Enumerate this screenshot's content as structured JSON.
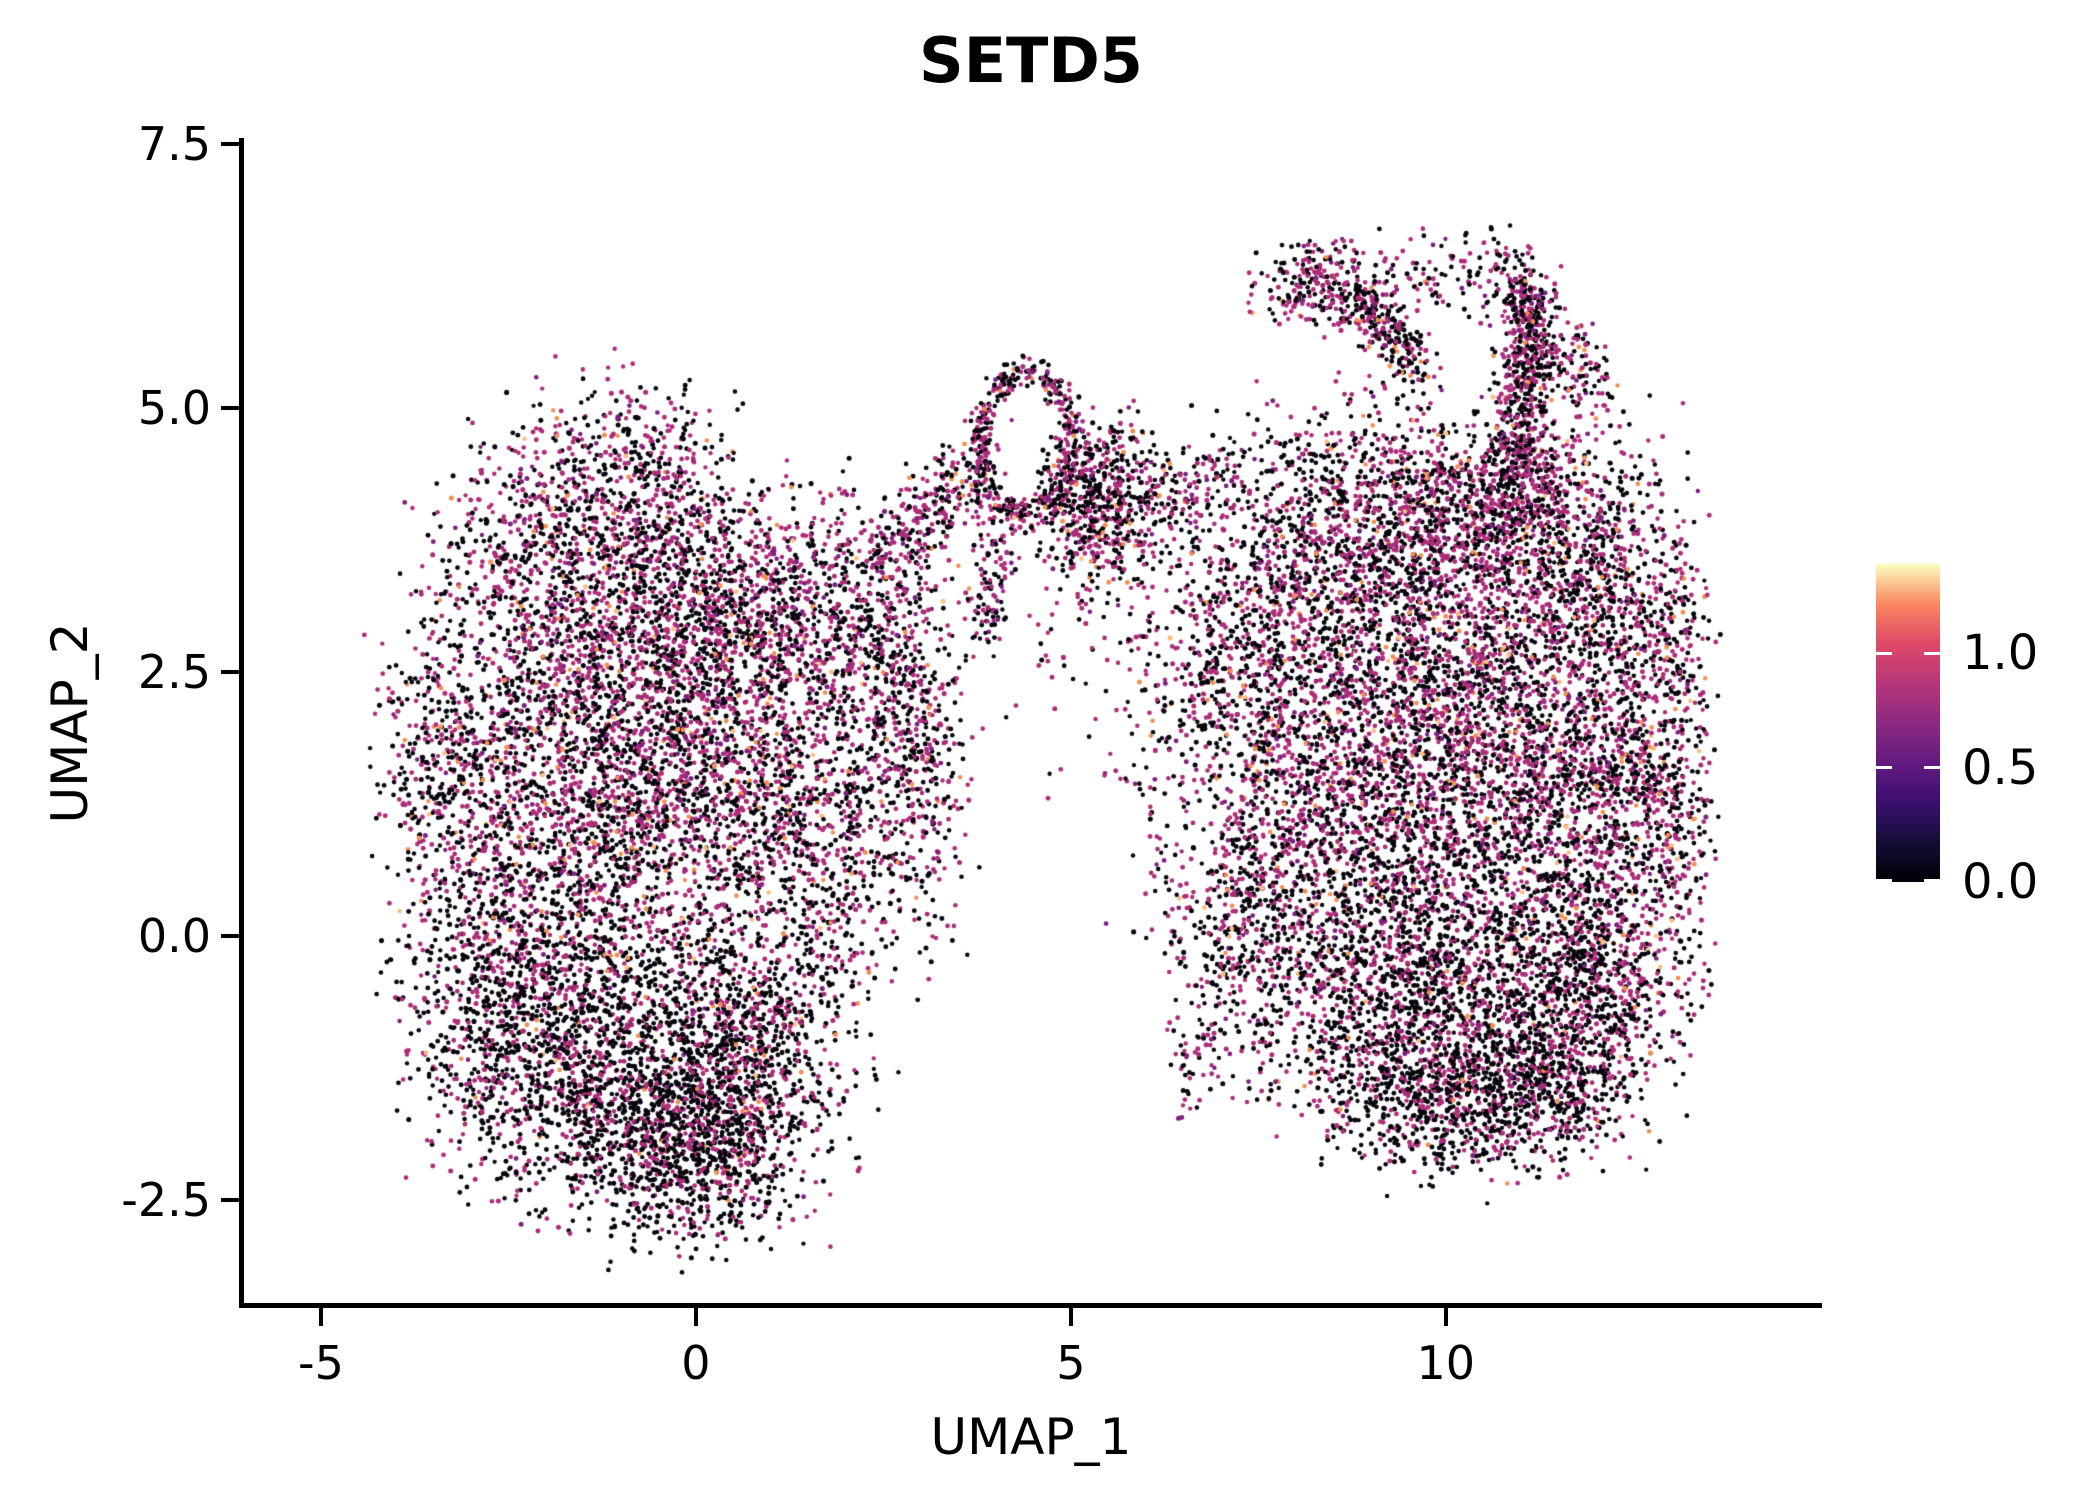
{
  "chart_data": {
    "type": "scatter",
    "title": "SETD5",
    "xlabel": "UMAP_1",
    "ylabel": "UMAP_2",
    "xlim": [
      -6.04,
      14.99
    ],
    "ylim": [
      -3.504,
      7.538
    ],
    "grid": false,
    "legend_position": "right-colorbar",
    "point_color_encoding": "SETD5 expression per cell, magma colormap, 0 to ~1.4",
    "x_ticks": [
      {
        "value": -5,
        "label": "-5"
      },
      {
        "value": 0,
        "label": "0"
      },
      {
        "value": 5,
        "label": "5"
      },
      {
        "value": 10,
        "label": "10"
      }
    ],
    "y_ticks": [
      {
        "value": 7.5,
        "label": "7.5"
      },
      {
        "value": 5.0,
        "label": "5.0"
      },
      {
        "value": 2.5,
        "label": "2.5"
      },
      {
        "value": 0.0,
        "label": "0.0"
      },
      {
        "value": -2.5,
        "label": "-2.5"
      }
    ],
    "colorbar": {
      "vmax": 1.39,
      "vmin": 0.0,
      "colormap": "magma",
      "stops": [
        "#000004",
        "#140e36",
        "#3b0f70",
        "#641a80",
        "#8c2981",
        "#b73779",
        "#de4968",
        "#fb8661",
        "#fcfdbf"
      ],
      "ticks": [
        {
          "value": 1.0,
          "label": "1.0"
        },
        {
          "value": 0.5,
          "label": "0.5"
        },
        {
          "value": 0.0,
          "label": "0.0"
        }
      ]
    },
    "palette": {
      "black": "#08060d",
      "magenta": "#ad2d79",
      "purple": "#7c2180",
      "orange": "#f29054",
      "bright": "#fdbd82"
    },
    "mixes": {
      "default": {
        "black": 0.52,
        "magenta": 0.4,
        "purple": 0.042,
        "orange": 0.03,
        "bright": 0.008
      },
      "dark": {
        "black": 0.7,
        "magenta": 0.27,
        "purple": 0.013,
        "orange": 0.015,
        "bright": 0.002
      },
      "mag": {
        "black": 0.47,
        "magenta": 0.44,
        "purple": 0.05,
        "orange": 0.035,
        "bright": 0.005
      }
    },
    "seed": 1234,
    "point_radius": 2.3,
    "clusters": [
      {
        "type": "gauss",
        "cx": -3.55,
        "cy": 1.8,
        "sx": 0.45,
        "sy": 0.8,
        "n": 230,
        "mix": "default"
      },
      {
        "type": "gauss",
        "cx": -2.9,
        "cy": 0.5,
        "sx": 0.75,
        "sy": 1.4,
        "n": 650,
        "mix": "default"
      },
      {
        "type": "gauss",
        "cx": -1.7,
        "cy": 2.2,
        "sx": 1.0,
        "sy": 1.1,
        "n": 850,
        "mix": "default"
      },
      {
        "type": "gauss",
        "cx": -0.4,
        "cy": 2.9,
        "sx": 1.0,
        "sy": 1.0,
        "n": 850,
        "mix": "default"
      },
      {
        "type": "gauss",
        "cx": -2.2,
        "cy": 3.6,
        "sx": 0.85,
        "sy": 0.75,
        "n": 480,
        "mix": "mag"
      },
      {
        "type": "gauss",
        "cx": -0.9,
        "cy": 4.35,
        "sx": 0.85,
        "sy": 0.6,
        "n": 430,
        "mix": "mag"
      },
      {
        "type": "gauss",
        "cx": 0.7,
        "cy": 3.2,
        "sx": 0.9,
        "sy": 0.7,
        "n": 560,
        "mix": "mag"
      },
      {
        "type": "gauss",
        "cx": 2.0,
        "cy": 2.9,
        "sx": 0.75,
        "sy": 0.75,
        "n": 430,
        "mix": "mag"
      },
      {
        "type": "gauss",
        "cx": 2.85,
        "cy": 2.2,
        "sx": 0.5,
        "sy": 0.85,
        "n": 330,
        "mix": "default"
      },
      {
        "type": "gauss",
        "cx": 0.6,
        "cy": 1.6,
        "sx": 1.05,
        "sy": 1.05,
        "n": 850,
        "mix": "default"
      },
      {
        "type": "gauss",
        "cx": -1.0,
        "cy": 0.9,
        "sx": 1.15,
        "sy": 1.15,
        "n": 1050,
        "mix": "default"
      },
      {
        "type": "gauss",
        "cx": 1.7,
        "cy": 0.8,
        "sx": 0.85,
        "sy": 0.95,
        "n": 620,
        "mix": "default"
      },
      {
        "type": "gauss",
        "cx": -2.2,
        "cy": -0.9,
        "sx": 0.95,
        "sy": 0.95,
        "n": 900,
        "mix": "dark"
      },
      {
        "type": "gauss",
        "cx": -0.7,
        "cy": -1.3,
        "sx": 1.05,
        "sy": 0.85,
        "n": 1150,
        "mix": "dark"
      },
      {
        "type": "gauss",
        "cx": 0.8,
        "cy": -1.15,
        "sx": 0.8,
        "sy": 0.8,
        "n": 760,
        "mix": "dark"
      },
      {
        "type": "gauss",
        "cx": -0.1,
        "cy": -2.15,
        "sx": 0.85,
        "sy": 0.5,
        "n": 580,
        "mix": "dark"
      },
      {
        "type": "line",
        "x1": 2.35,
        "y1": 3.55,
        "x2": 3.85,
        "y2": 4.5,
        "jitter": 0.27,
        "n": 300,
        "mix": "mag"
      },
      {
        "type": "gauss",
        "cx": 3.1,
        "cy": 1.3,
        "sx": 0.35,
        "sy": 0.9,
        "n": 130,
        "mix": "default"
      },
      {
        "type": "ring",
        "cx": 4.4,
        "cy": 4.67,
        "r": 0.62,
        "rs": 0.09,
        "ar": 1.1,
        "n": 420,
        "mix": "mag"
      },
      {
        "type": "gauss",
        "cx": 5.35,
        "cy": 4.15,
        "sx": 0.48,
        "sy": 0.5,
        "n": 560,
        "mix": "default"
      },
      {
        "type": "line",
        "x1": 4.05,
        "y1": 3.85,
        "x2": 3.85,
        "y2": 2.8,
        "jitter": 0.18,
        "n": 110,
        "mix": "mag"
      },
      {
        "type": "line",
        "x1": 5.9,
        "y1": 3.95,
        "x2": 7.05,
        "y2": 4.4,
        "jitter": 0.3,
        "n": 150,
        "mix": "default"
      },
      {
        "type": "gauss",
        "cx": 5.3,
        "cy": 2.7,
        "sx": 0.75,
        "sy": 0.75,
        "n": 80,
        "mix": "default"
      },
      {
        "type": "gauss",
        "cx": 6.2,
        "cy": 1.8,
        "sx": 0.35,
        "sy": 1.4,
        "n": 120,
        "mix": "default"
      },
      {
        "type": "gauss",
        "cx": 8.35,
        "cy": 6.15,
        "sx": 0.55,
        "sy": 0.27,
        "n": 250,
        "mix": "mag"
      },
      {
        "type": "line",
        "x1": 8.75,
        "y1": 6.0,
        "x2": 9.7,
        "y2": 5.35,
        "jitter": 0.18,
        "n": 220,
        "mix": "mag"
      },
      {
        "type": "line",
        "x1": 9.3,
        "y1": 6.15,
        "x2": 10.9,
        "y2": 6.35,
        "jitter": 0.28,
        "n": 120,
        "mix": "default"
      },
      {
        "type": "line",
        "x1": 10.95,
        "y1": 6.3,
        "x2": 11.25,
        "y2": 5.3,
        "jitter": 0.2,
        "n": 130,
        "mix": "mag"
      },
      {
        "type": "line",
        "x1": 11.15,
        "y1": 6.2,
        "x2": 10.95,
        "y2": 4.45,
        "jitter": 0.22,
        "n": 460,
        "mix": "mag"
      },
      {
        "type": "gauss",
        "cx": 11.0,
        "cy": 4.25,
        "sx": 0.5,
        "sy": 0.35,
        "n": 210,
        "mix": "mag"
      },
      {
        "type": "line",
        "x1": 11.5,
        "y1": 5.6,
        "x2": 12.15,
        "y2": 5.05,
        "jitter": 0.22,
        "n": 100,
        "mix": "default"
      },
      {
        "type": "gauss",
        "cx": 8.6,
        "cy": 3.9,
        "sx": 1.0,
        "sy": 0.7,
        "n": 780,
        "mix": "default"
      },
      {
        "type": "gauss",
        "cx": 10.4,
        "cy": 3.95,
        "sx": 1.0,
        "sy": 0.7,
        "n": 820,
        "mix": "default"
      },
      {
        "type": "gauss",
        "cx": 11.9,
        "cy": 3.6,
        "sx": 0.8,
        "sy": 0.75,
        "n": 580,
        "mix": "default"
      },
      {
        "type": "gauss",
        "cx": 7.5,
        "cy": 2.6,
        "sx": 0.7,
        "sy": 0.9,
        "n": 540,
        "mix": "default"
      },
      {
        "type": "gauss",
        "cx": 9.4,
        "cy": 2.5,
        "sx": 1.1,
        "sy": 1.0,
        "n": 1080,
        "mix": "default"
      },
      {
        "type": "gauss",
        "cx": 11.2,
        "cy": 2.3,
        "sx": 1.0,
        "sy": 1.0,
        "n": 880,
        "mix": "default"
      },
      {
        "type": "gauss",
        "cx": 12.6,
        "cy": 2.0,
        "sx": 0.55,
        "sy": 0.9,
        "n": 400,
        "mix": "default"
      },
      {
        "type": "gauss",
        "cx": 8.3,
        "cy": 1.0,
        "sx": 1.0,
        "sy": 1.0,
        "n": 880,
        "mix": "default"
      },
      {
        "type": "gauss",
        "cx": 10.2,
        "cy": 1.0,
        "sx": 1.1,
        "sy": 1.1,
        "n": 1120,
        "mix": "default"
      },
      {
        "type": "gauss",
        "cx": 12.0,
        "cy": 0.8,
        "sx": 0.8,
        "sy": 1.0,
        "n": 680,
        "mix": "default"
      },
      {
        "type": "gauss",
        "cx": 7.2,
        "cy": 0.0,
        "sx": 0.5,
        "sy": 0.9,
        "n": 340,
        "mix": "default"
      },
      {
        "type": "gauss",
        "cx": 9.0,
        "cy": -0.6,
        "sx": 1.0,
        "sy": 0.8,
        "n": 880,
        "mix": "dark"
      },
      {
        "type": "gauss",
        "cx": 10.8,
        "cy": -0.8,
        "sx": 1.0,
        "sy": 0.8,
        "n": 930,
        "mix": "dark"
      },
      {
        "type": "gauss",
        "cx": 12.2,
        "cy": -0.6,
        "sx": 0.7,
        "sy": 0.7,
        "n": 480,
        "mix": "default"
      },
      {
        "type": "gauss",
        "cx": 9.9,
        "cy": -1.6,
        "sx": 0.9,
        "sy": 0.45,
        "n": 480,
        "mix": "dark"
      },
      {
        "type": "gauss",
        "cx": 11.4,
        "cy": -1.5,
        "sx": 0.6,
        "sy": 0.4,
        "n": 280,
        "mix": "dark"
      },
      {
        "type": "gauss",
        "cx": 6.6,
        "cy": -1.3,
        "sx": 0.18,
        "sy": 0.35,
        "n": 40,
        "mix": "default"
      },
      {
        "type": "gauss",
        "cx": 6.75,
        "cy": 3.0,
        "sx": 0.3,
        "sy": 1.0,
        "n": 120,
        "mix": "default"
      },
      {
        "type": "gauss",
        "cx": 13.0,
        "cy": 2.8,
        "sx": 0.3,
        "sy": 0.5,
        "n": 120,
        "mix": "default"
      },
      {
        "type": "gauss",
        "cx": 13.05,
        "cy": 0.9,
        "sx": 0.3,
        "sy": 0.6,
        "n": 130,
        "mix": "default"
      }
    ]
  }
}
